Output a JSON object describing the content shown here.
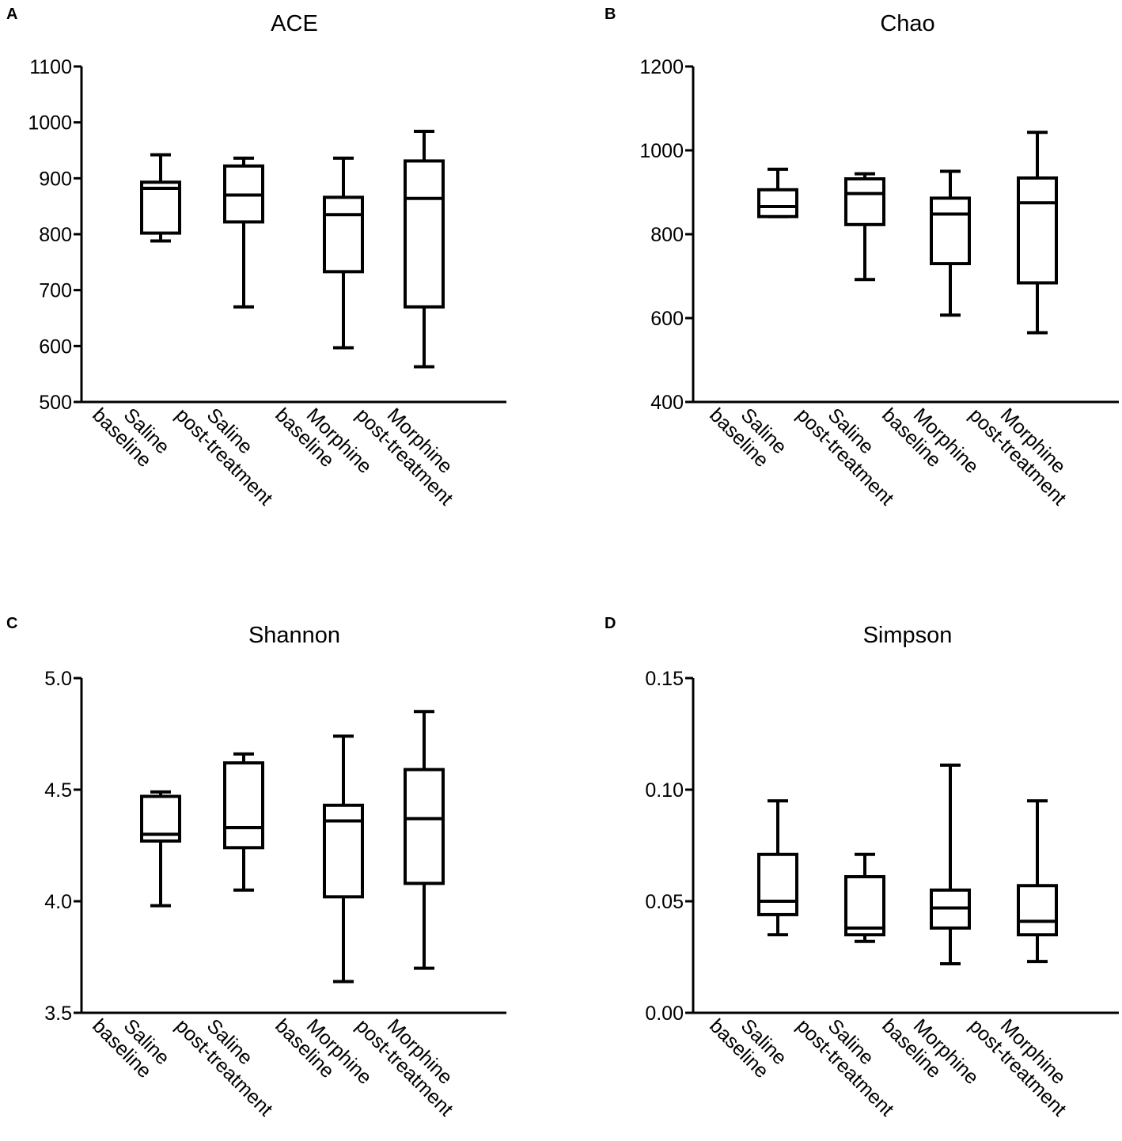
{
  "chart_data": [
    {
      "panel_label": "A",
      "type": "box",
      "title": "ACE",
      "categories": [
        [
          "Saline",
          "baseline"
        ],
        [
          "Saline",
          "post-treatment"
        ],
        [
          "Morphine",
          "baseline"
        ],
        [
          "Morphine",
          "post-treatment"
        ]
      ],
      "ylim": [
        500,
        1100
      ],
      "yticks": [
        500,
        600,
        700,
        800,
        900,
        1000,
        1100
      ],
      "ytick_labels": [
        "500",
        "600",
        "700",
        "800",
        "900",
        "1000",
        "1100"
      ],
      "boxes": [
        {
          "min": 788,
          "q1": 802,
          "median": 882,
          "q3": 893,
          "max": 942
        },
        {
          "min": 670,
          "q1": 822,
          "median": 870,
          "q3": 922,
          "max": 936
        },
        {
          "min": 597,
          "q1": 733,
          "median": 835,
          "q3": 866,
          "max": 936
        },
        {
          "min": 563,
          "q1": 670,
          "median": 864,
          "q3": 931,
          "max": 984
        }
      ]
    },
    {
      "panel_label": "B",
      "type": "box",
      "title": "Chao",
      "categories": [
        [
          "Saline",
          "baseline"
        ],
        [
          "Saline",
          "post-treatment"
        ],
        [
          "Morphine",
          "baseline"
        ],
        [
          "Morphine",
          "post-treatment"
        ]
      ],
      "ylim": [
        400,
        1200
      ],
      "yticks": [
        400,
        600,
        800,
        1000,
        1200
      ],
      "ytick_labels": [
        "400",
        "600",
        "800",
        "1000",
        "1200"
      ],
      "boxes": [
        {
          "min": 842,
          "q1": 842,
          "median": 866,
          "q3": 906,
          "max": 955
        },
        {
          "min": 692,
          "q1": 823,
          "median": 897,
          "q3": 932,
          "max": 944
        },
        {
          "min": 607,
          "q1": 730,
          "median": 848,
          "q3": 886,
          "max": 950
        },
        {
          "min": 565,
          "q1": 684,
          "median": 875,
          "q3": 934,
          "max": 1043
        }
      ]
    },
    {
      "panel_label": "C",
      "type": "box",
      "title": "Shannon",
      "categories": [
        [
          "Saline",
          "baseline"
        ],
        [
          "Saline",
          "post-treatment"
        ],
        [
          "Morphine",
          "baseline"
        ],
        [
          "Morphine",
          "post-treatment"
        ]
      ],
      "ylim": [
        3.5,
        5.0
      ],
      "yticks": [
        3.5,
        4.0,
        4.5,
        5.0
      ],
      "ytick_labels": [
        "3.5",
        "4.0",
        "4.5",
        "5.0"
      ],
      "boxes": [
        {
          "min": 3.98,
          "q1": 4.27,
          "median": 4.3,
          "q3": 4.47,
          "max": 4.49
        },
        {
          "min": 4.05,
          "q1": 4.24,
          "median": 4.33,
          "q3": 4.62,
          "max": 4.66
        },
        {
          "min": 3.64,
          "q1": 4.02,
          "median": 4.36,
          "q3": 4.43,
          "max": 4.74
        },
        {
          "min": 3.7,
          "q1": 4.08,
          "median": 4.37,
          "q3": 4.59,
          "max": 4.85
        }
      ]
    },
    {
      "panel_label": "D",
      "type": "box",
      "title": "Simpson",
      "categories": [
        [
          "Saline",
          "baseline"
        ],
        [
          "Saline",
          "post-treatment"
        ],
        [
          "Morphine",
          "baseline"
        ],
        [
          "Morphine",
          "post-treatment"
        ]
      ],
      "ylim": [
        0.0,
        0.15
      ],
      "yticks": [
        0.0,
        0.05,
        0.1,
        0.15
      ],
      "ytick_labels": [
        "0.00",
        "0.05",
        "0.10",
        "0.15"
      ],
      "boxes": [
        {
          "min": 0.035,
          "q1": 0.044,
          "median": 0.05,
          "q3": 0.071,
          "max": 0.095
        },
        {
          "min": 0.032,
          "q1": 0.035,
          "median": 0.038,
          "q3": 0.061,
          "max": 0.071
        },
        {
          "min": 0.022,
          "q1": 0.038,
          "median": 0.047,
          "q3": 0.055,
          "max": 0.111
        },
        {
          "min": 0.023,
          "q1": 0.035,
          "median": 0.041,
          "q3": 0.057,
          "max": 0.095
        }
      ]
    }
  ]
}
